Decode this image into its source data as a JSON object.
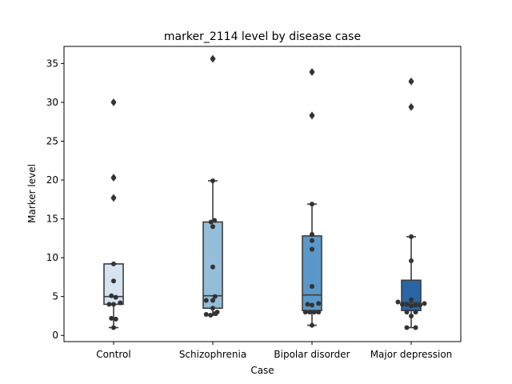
{
  "chart_data": {
    "type": "box",
    "title": "marker_2114 level by disease case",
    "xlabel": "Case",
    "ylabel": "Marker level",
    "ylim": [
      -0.8,
      37.2
    ],
    "yticks": [
      0,
      5,
      10,
      15,
      20,
      25,
      30,
      35
    ],
    "grid": false,
    "categories": [
      "Control",
      "Schizophrenia",
      "Bipolar disorder",
      "Major depression"
    ],
    "colors": [
      "#d6e3f0",
      "#93bdd9",
      "#5a98c9",
      "#2866a5"
    ],
    "boxes": [
      {
        "q1": 4.0,
        "median": 5.0,
        "q3": 9.2,
        "whisker_low": 1.0,
        "whisker_high": 9.2,
        "outliers": [
          17.7,
          20.3,
          30.0
        ]
      },
      {
        "q1": 3.5,
        "median": 5.1,
        "q3": 14.6,
        "whisker_low": 2.6,
        "whisker_high": 19.9,
        "outliers": [
          35.6
        ]
      },
      {
        "q1": 3.2,
        "median": 5.2,
        "q3": 12.8,
        "whisker_low": 1.3,
        "whisker_high": 16.9,
        "outliers": [
          28.3,
          33.9
        ]
      },
      {
        "q1": 3.2,
        "median": 4.2,
        "q3": 7.1,
        "whisker_low": 1.0,
        "whisker_high": 12.7,
        "outliers": [
          29.4,
          32.7
        ]
      }
    ],
    "points": [
      [
        {
          "y": 30.0,
          "dx": 0
        },
        {
          "y": 20.3,
          "dx": 0
        },
        {
          "y": 17.7,
          "dx": 0
        },
        {
          "y": 9.2,
          "dx": 0
        },
        {
          "y": 7.0,
          "dx": 0
        },
        {
          "y": 5.1,
          "dx": -0.5
        },
        {
          "y": 4.9,
          "dx": 0.5
        },
        {
          "y": 4.2,
          "dx": 1.5
        },
        {
          "y": 4.0,
          "dx": -1
        },
        {
          "y": 4.0,
          "dx": 0
        },
        {
          "y": 2.2,
          "dx": -0.5
        },
        {
          "y": 2.1,
          "dx": 0.5
        },
        {
          "y": 1.0,
          "dx": 0
        }
      ],
      [
        {
          "y": 35.6,
          "dx": 0
        },
        {
          "y": 19.9,
          "dx": 0
        },
        {
          "y": 14.8,
          "dx": 0.4
        },
        {
          "y": 14.6,
          "dx": -0.4
        },
        {
          "y": 14.0,
          "dx": 0
        },
        {
          "y": 8.8,
          "dx": 0
        },
        {
          "y": 5.0,
          "dx": 0.5
        },
        {
          "y": 4.5,
          "dx": -1.5
        },
        {
          "y": 4.5,
          "dx": 0
        },
        {
          "y": 3.5,
          "dx": 0
        },
        {
          "y": 3.0,
          "dx": 1
        },
        {
          "y": 2.8,
          "dx": 0.5
        },
        {
          "y": 2.7,
          "dx": -1.5
        },
        {
          "y": 2.6,
          "dx": -0.5
        }
      ],
      [
        {
          "y": 33.9,
          "dx": 0
        },
        {
          "y": 28.3,
          "dx": 0
        },
        {
          "y": 16.9,
          "dx": 0
        },
        {
          "y": 13.0,
          "dx": 0
        },
        {
          "y": 12.2,
          "dx": 0
        },
        {
          "y": 11.1,
          "dx": 0
        },
        {
          "y": 6.3,
          "dx": 0
        },
        {
          "y": 4.1,
          "dx": 1.5
        },
        {
          "y": 4.0,
          "dx": -1
        },
        {
          "y": 3.9,
          "dx": 0
        },
        {
          "y": 3.0,
          "dx": -1.5
        },
        {
          "y": 3.0,
          "dx": -0.5
        },
        {
          "y": 3.0,
          "dx": 0.5
        },
        {
          "y": 3.0,
          "dx": 1.5
        },
        {
          "y": 1.3,
          "dx": 0
        }
      ],
      [
        {
          "y": 32.7,
          "dx": 0
        },
        {
          "y": 29.4,
          "dx": 0
        },
        {
          "y": 12.7,
          "dx": 0
        },
        {
          "y": 9.6,
          "dx": 0
        },
        {
          "y": 4.6,
          "dx": 0
        },
        {
          "y": 4.3,
          "dx": -3
        },
        {
          "y": 4.1,
          "dx": 3
        },
        {
          "y": 4.0,
          "dx": -2
        },
        {
          "y": 4.0,
          "dx": -1
        },
        {
          "y": 3.9,
          "dx": 1
        },
        {
          "y": 3.9,
          "dx": 2
        },
        {
          "y": 3.8,
          "dx": 0
        },
        {
          "y": 3.0,
          "dx": -1
        },
        {
          "y": 3.0,
          "dx": 1
        },
        {
          "y": 2.5,
          "dx": 0
        },
        {
          "y": 1.0,
          "dx": -1
        },
        {
          "y": 1.0,
          "dx": 1
        }
      ]
    ]
  }
}
